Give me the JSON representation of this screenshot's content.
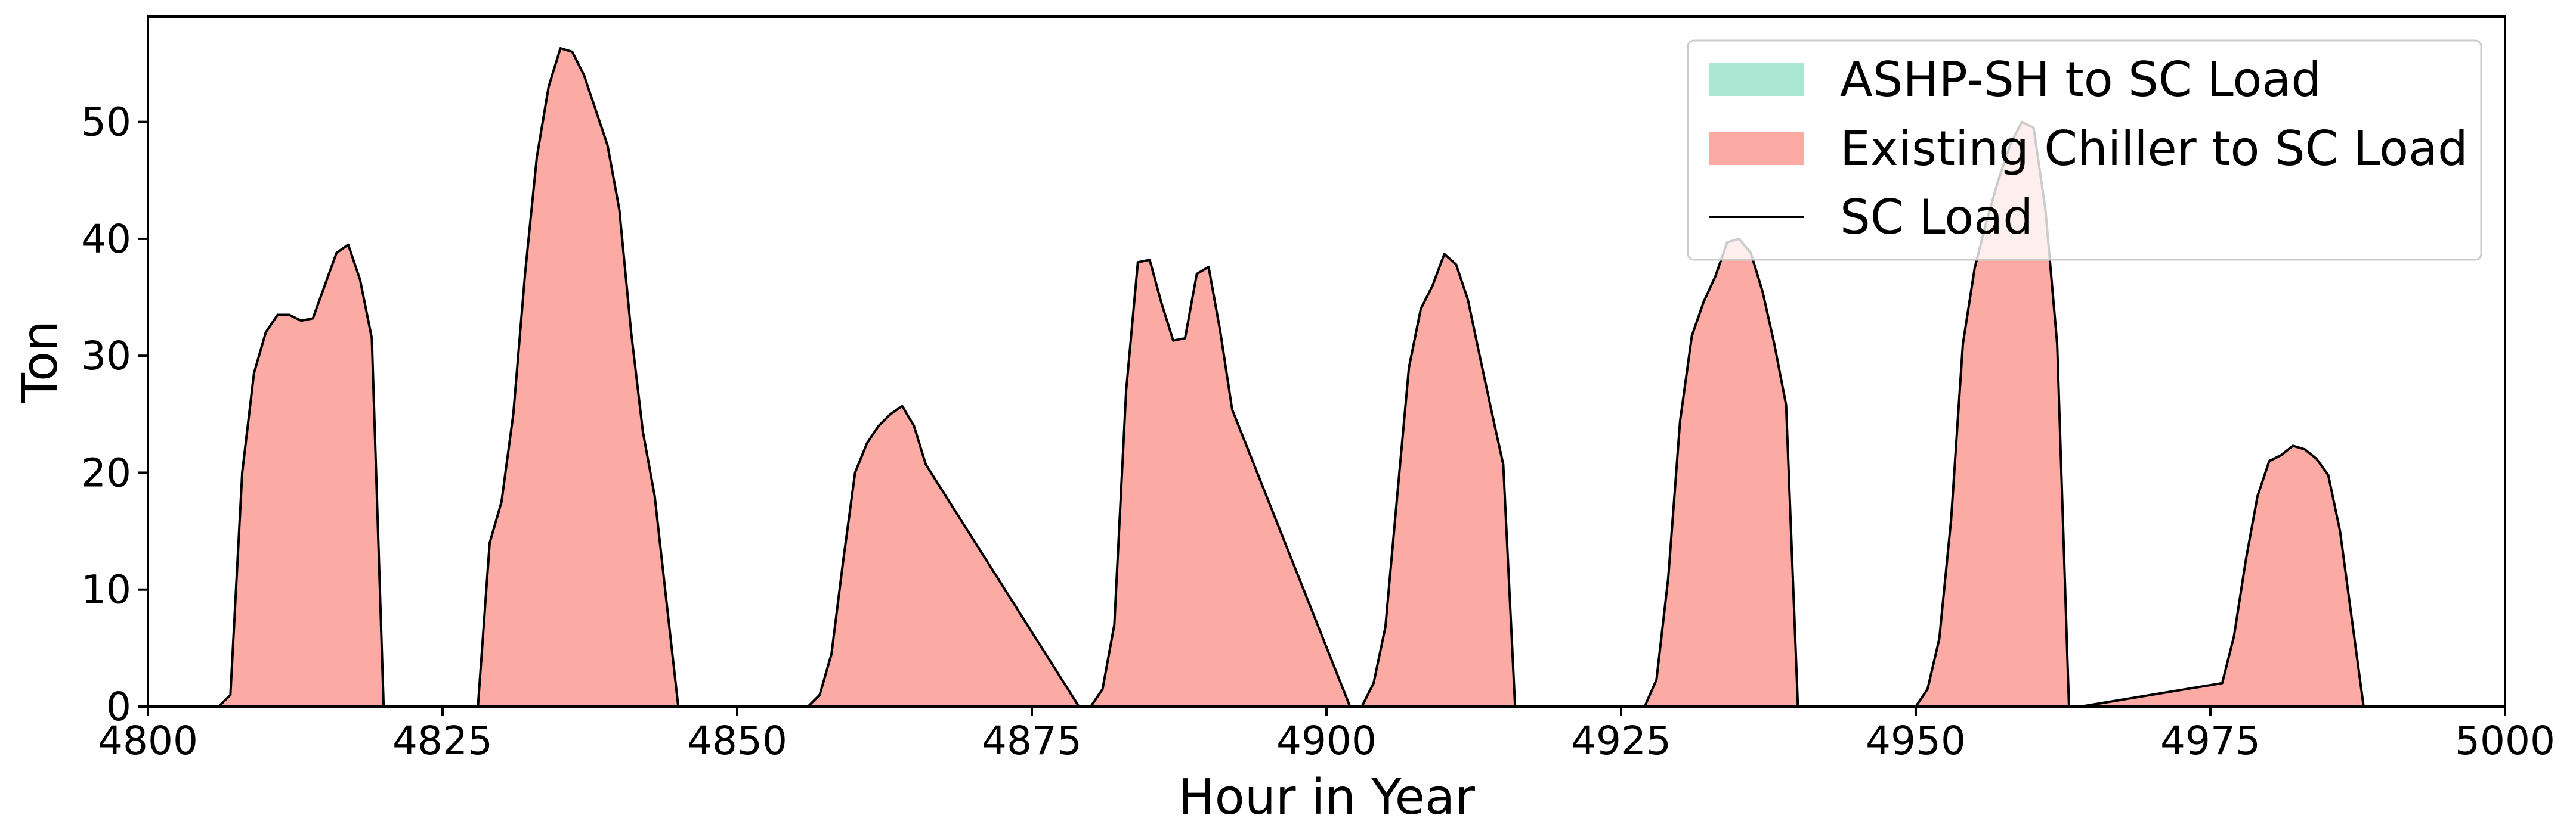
{
  "chart_data": {
    "type": "area",
    "xlabel": "Hour in Year",
    "ylabel": "Ton",
    "xlim": [
      4800,
      5000
    ],
    "ylim": [
      0,
      59
    ],
    "x_ticks": [
      4800,
      4825,
      4850,
      4875,
      4900,
      4925,
      4950,
      4975,
      5000
    ],
    "y_ticks": [
      0,
      10,
      20,
      30,
      40,
      50
    ],
    "grid": false,
    "legend_position": "top-right",
    "colors": {
      "ashp_sh": "#aae6d1",
      "existing_chiller": "#fbaaa4",
      "sc_load_line": "#000000"
    },
    "series": [
      {
        "name": "ASHP-SH to SC Load",
        "kind": "area",
        "color": "#aae6d1",
        "x": [
          4800,
          5000
        ],
        "y": [
          0,
          0
        ]
      },
      {
        "name": "Existing Chiller to SC Load",
        "kind": "area",
        "color": "#fbaaa4",
        "x": [
          4800,
          4806,
          4807,
          4808,
          4809,
          4810,
          4811,
          4812,
          4813,
          4814,
          4815,
          4816,
          4817,
          4818,
          4819,
          4820,
          4828,
          4829,
          4830,
          4831,
          4832,
          4833,
          4834,
          4835,
          4836,
          4837,
          4838,
          4839,
          4840,
          4841,
          4842,
          4843,
          4844,
          4845,
          4856,
          4857,
          4858,
          4859,
          4860,
          4861,
          4862,
          4863,
          4864,
          4865,
          4866,
          4879,
          4880,
          4881,
          4882,
          4883,
          4884,
          4885,
          4886,
          4887,
          4888,
          4889,
          4890,
          4891,
          4892,
          4902,
          4903,
          4904,
          4905,
          4906,
          4907,
          4908,
          4909,
          4910,
          4911,
          4912,
          4913,
          4914,
          4915,
          4916,
          4927,
          4928,
          4929,
          4930,
          4931,
          4932,
          4933,
          4934,
          4935,
          4936,
          4937,
          4938,
          4939,
          4940,
          4950,
          4951,
          4952,
          4953,
          4954,
          4955,
          4956,
          4957,
          4958,
          4959,
          4960,
          4961,
          4962,
          4963,
          4964,
          4976,
          4977,
          4978,
          4979,
          4980,
          4981,
          4982,
          4983,
          4984,
          4985,
          4986,
          4987,
          4988,
          5000
        ],
        "y": [
          0,
          0,
          1,
          20,
          28.5,
          32,
          33.5,
          33.5,
          33,
          33.2,
          36,
          38.8,
          39.5,
          36.5,
          31.5,
          0,
          0,
          14,
          17.5,
          25,
          37,
          47,
          53,
          56.3,
          56,
          54,
          51,
          48,
          42.5,
          32,
          23.5,
          18,
          9,
          0,
          0,
          1,
          4.5,
          12.5,
          20,
          22.5,
          24,
          25,
          25.7,
          24,
          20.7,
          0,
          0,
          1.5,
          7,
          27,
          38,
          38.2,
          34.5,
          31.3,
          31.5,
          37,
          37.6,
          32,
          25.4,
          0,
          0,
          2,
          6.8,
          18,
          29,
          34,
          36,
          38.7,
          37.8,
          34.8,
          30,
          25.3,
          20.7,
          0,
          0,
          2.3,
          11,
          24.4,
          31.7,
          34.6,
          36.8,
          39.7,
          40,
          38.8,
          35.5,
          31,
          25.8,
          0,
          0,
          1.5,
          5.8,
          16,
          31,
          37.5,
          41.5,
          45,
          48,
          50,
          49.5,
          42.5,
          31,
          0,
          0,
          2,
          6,
          12.5,
          18,
          21,
          21.5,
          22.3,
          22,
          21.2,
          19.8,
          15,
          7.5,
          0,
          0
        ]
      },
      {
        "name": "SC Load",
        "kind": "line",
        "color": "#000000"
      }
    ]
  }
}
